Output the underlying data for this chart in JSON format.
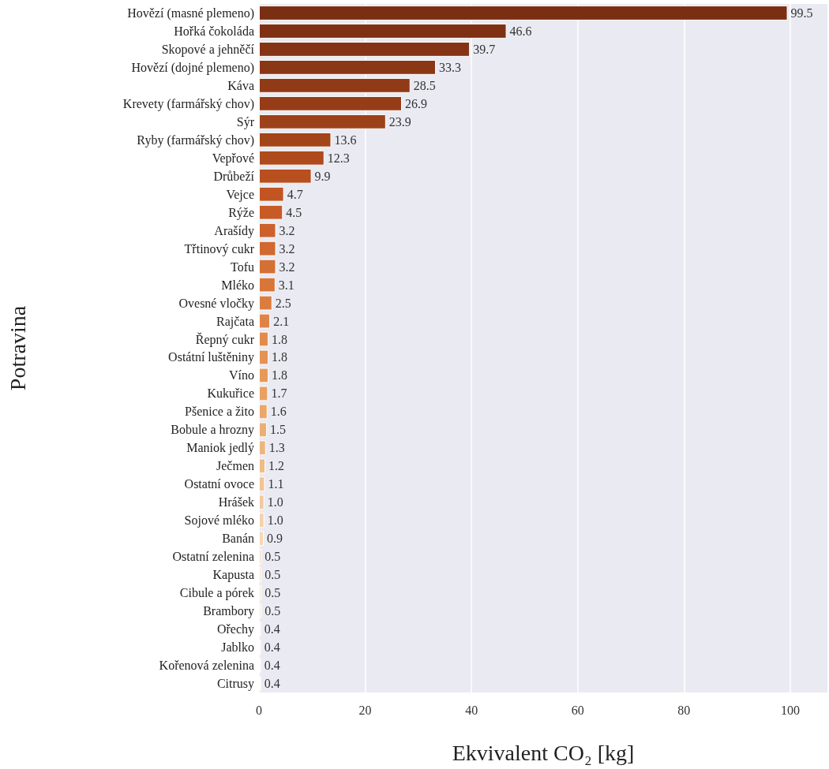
{
  "chart_data": {
    "type": "bar",
    "orientation": "horizontal",
    "xlabel": "Ekvivalent CO₂ [kg]",
    "ylabel": "Potravina",
    "categories": [
      "Hovězí (masné plemeno)",
      "Hořká čokoláda",
      "Skopové a jehněčí",
      "Hovězí (dojné plemeno)",
      "Káva",
      "Krevety (farmářský chov)",
      "Sýr",
      "Ryby (farmářský chov)",
      "Vepřové",
      "Drůbeží",
      "Vejce",
      "Rýže",
      "Arašídy",
      "Třtinový cukr",
      "Tofu",
      "Mléko",
      "Ovesné vločky",
      "Rajčata",
      "Řepný cukr",
      "Ostátní luštěniny",
      "Víno",
      "Kukuřice",
      "Pšenice a žito",
      "Bobule a hrozny",
      "Maniok jedlý",
      "Ječmen",
      "Ostatní ovoce",
      "Hrášek",
      "Sojové mléko",
      "Banán",
      "Ostatní zelenina",
      "Kapusta",
      "Cibule a pórek",
      "Brambory",
      "Ořechy",
      "Jablko",
      "Kořenová zelenina",
      "Citrusy"
    ],
    "values": [
      99.5,
      46.6,
      39.7,
      33.3,
      28.5,
      26.9,
      23.9,
      13.6,
      12.3,
      9.9,
      4.7,
      4.5,
      3.2,
      3.2,
      3.2,
      3.1,
      2.5,
      2.1,
      1.8,
      1.8,
      1.8,
      1.7,
      1.6,
      1.5,
      1.3,
      1.2,
      1.1,
      1.0,
      1.0,
      0.9,
      0.5,
      0.5,
      0.5,
      0.5,
      0.4,
      0.4,
      0.4,
      0.4
    ],
    "value_labels": [
      "99.5",
      "46.6",
      "39.7",
      "33.3",
      "28.5",
      "26.9",
      "23.9",
      "13.6",
      "12.3",
      "9.9",
      "4.7",
      "4.5",
      "3.2",
      "3.2",
      "3.2",
      "3.1",
      "2.5",
      "2.1",
      "1.8",
      "1.8",
      "1.8",
      "1.7",
      "1.6",
      "1.5",
      "1.3",
      "1.2",
      "1.1",
      "1.0",
      "1.0",
      "0.9",
      "0.5",
      "0.5",
      "0.5",
      "0.5",
      "0.4",
      "0.4",
      "0.4",
      "0.4"
    ],
    "colors": [
      "#7a2e12",
      "#7f3013",
      "#843415",
      "#8a3716",
      "#903a17",
      "#963d18",
      "#9c4119",
      "#a3451a",
      "#ae4a1c",
      "#b84f1f",
      "#c25422",
      "#c85a26",
      "#cc612b",
      "#d06830",
      "#d46f35",
      "#d8763a",
      "#dc7d40",
      "#e08446",
      "#e38b4c",
      "#e59253",
      "#e7995a",
      "#e9a062",
      "#eba76b",
      "#edae74",
      "#efb57e",
      "#f0bc88",
      "#f2c393",
      "#f3ca9e",
      "#f5d1a9",
      "#f6d8b4",
      "#f8dfc0",
      "#f9e4ca",
      "#fae8d3",
      "#fbecdb",
      "#fcefe2",
      "#fdf2e8",
      "#fdf4ec",
      "#fef6ef"
    ],
    "xlim": [
      0,
      107
    ],
    "xticks": [
      0,
      20,
      40,
      60,
      80,
      100
    ],
    "grid": "x"
  }
}
